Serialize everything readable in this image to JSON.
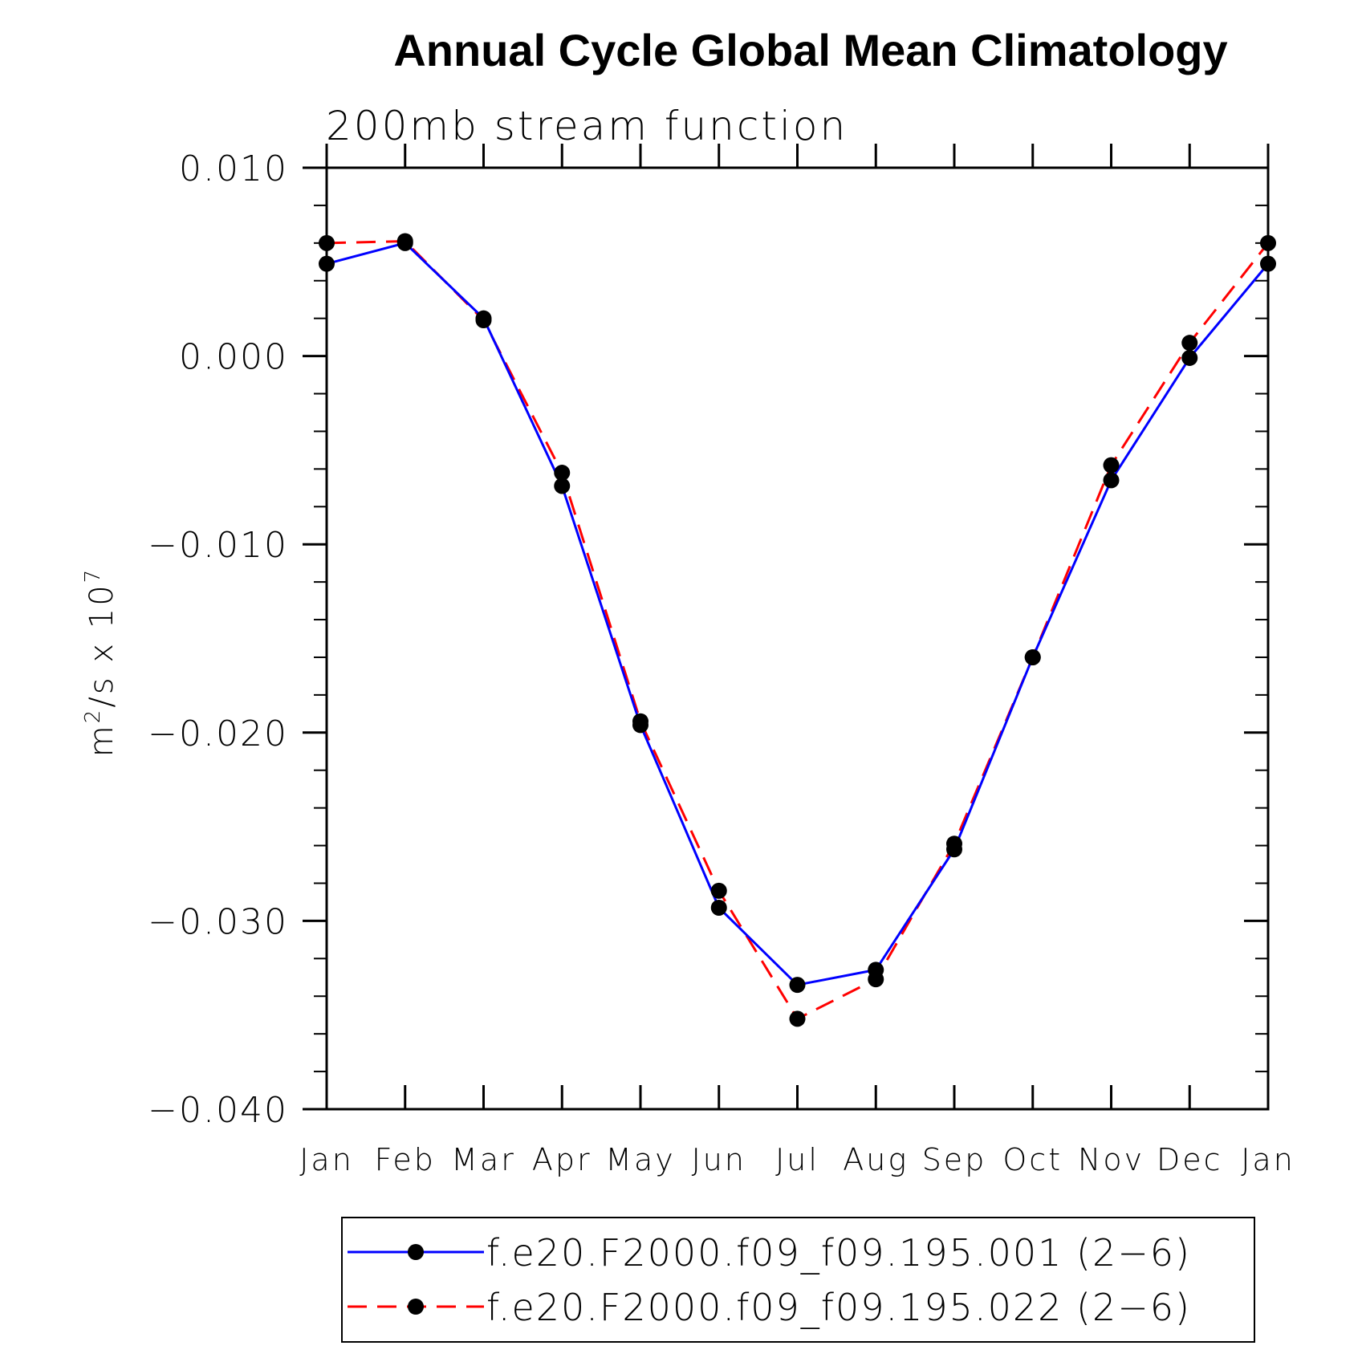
{
  "chart_data": {
    "type": "line",
    "title": "Annual Cycle Global Mean Climatology",
    "subtitle": "200mb stream function",
    "ylabel_base": "m",
    "ylabel_sup1": "2",
    "ylabel_mid": "/s x 10",
    "ylabel_sup2": "7",
    "xlabel": "",
    "categories": [
      "Jan",
      "Feb",
      "Mar",
      "Apr",
      "May",
      "Jun",
      "Jul",
      "Aug",
      "Sep",
      "Oct",
      "Nov",
      "Dec",
      "Jan"
    ],
    "ylim": [
      -0.04,
      0.01
    ],
    "yticks": [
      0.01,
      0.0,
      -0.01,
      -0.02,
      -0.03,
      -0.04
    ],
    "ytick_labels": [
      "0.010",
      "0.000",
      "−0.010",
      "−0.020",
      "−0.030",
      "−0.040"
    ],
    "grid": false,
    "legend_position": "bottom",
    "series": [
      {
        "name": "f.e20.F2000.f09_f09.195.001 (2−6)",
        "color": "#0000ff",
        "line_style": "solid",
        "marker": "filled-circle",
        "values": [
          0.0049,
          0.006,
          0.002,
          -0.0069,
          -0.0196,
          -0.0293,
          -0.0334,
          -0.0326,
          -0.0262,
          -0.016,
          -0.0066,
          -0.0001,
          0.0049
        ]
      },
      {
        "name": "f.e20.F2000.f09_f09.195.022 (2−6)",
        "color": "#ff0000",
        "line_style": "dashed",
        "marker": "filled-circle",
        "values": [
          0.006,
          0.0061,
          0.0019,
          -0.0062,
          -0.0194,
          -0.0284,
          -0.0352,
          -0.0331,
          -0.0259,
          -0.016,
          -0.0058,
          0.0007,
          0.006
        ]
      }
    ]
  }
}
